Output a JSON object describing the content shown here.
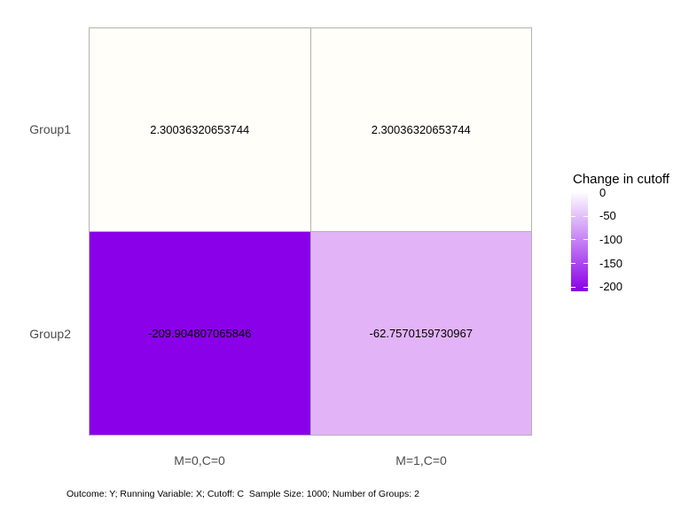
{
  "chart_data": {
    "type": "heatmap",
    "title": "",
    "x_categories": [
      "M=0,C=0",
      "M=1,C=0"
    ],
    "y_categories": [
      "Group1",
      "Group2"
    ],
    "values": [
      [
        2.30036320653744,
        2.30036320653744
      ],
      [
        -209.904807065846,
        -62.7570159730967
      ]
    ],
    "cell_labels": [
      [
        "2.30036320653744",
        "2.30036320653744"
      ],
      [
        "-209.904807065846",
        "-62.7570159730967"
      ]
    ],
    "cell_colors": [
      [
        "#fffef8",
        "#fffef8"
      ],
      [
        "#8a00e8",
        "#e2b3f7"
      ]
    ],
    "grid_line_color": "#b2b2b2",
    "axis_text_color": "#4d4d4d",
    "legend": {
      "title": "Change in cutoff",
      "position": "right",
      "tick_labels": [
        "0",
        "-50",
        "-100",
        "-150",
        "-200"
      ],
      "tick_values": [
        0,
        -50,
        -100,
        -150,
        -200
      ],
      "domain_max": 2.30036320653744,
      "domain_min": -209.904807065846,
      "top_color": "#ffffff",
      "bottom_color": "#8a00e8"
    },
    "caption": "Outcome: Y; Running Variable: X; Cutoff: C  Sample Size: 1000; Number of Groups: 2"
  }
}
